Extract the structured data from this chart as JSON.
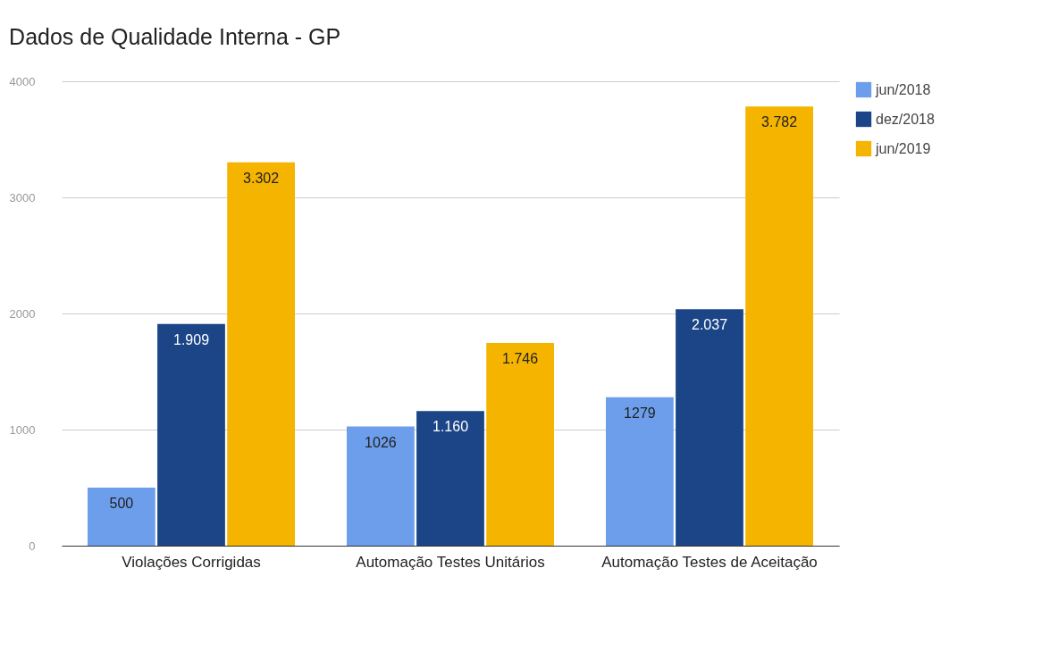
{
  "chart_data": {
    "type": "bar",
    "title": "Dados de Qualidade Interna - GP",
    "categories": [
      "Violações Corrigidas",
      "Automação Testes Unitários",
      "Automação Testes de Aceitação"
    ],
    "series": [
      {
        "name": "jun/2018",
        "color": "#6d9eeb",
        "values": [
          500,
          1026,
          1279
        ],
        "value_labels": [
          "500",
          "1026",
          "1279"
        ]
      },
      {
        "name": "dez/2018",
        "color": "#1c4587",
        "values": [
          1909,
          1160,
          2037
        ],
        "value_labels": [
          "1.909",
          "1.160",
          "2.037"
        ]
      },
      {
        "name": "jun/2019",
        "color": "#f4b400",
        "values": [
          3302,
          1746,
          3782
        ],
        "value_labels": [
          "3.302",
          "1.746",
          "3.782"
        ]
      }
    ],
    "ylim": [
      0,
      4000
    ],
    "yticks": [
      0,
      1000,
      2000,
      3000,
      4000
    ],
    "grid": "y",
    "legend": "top right"
  }
}
